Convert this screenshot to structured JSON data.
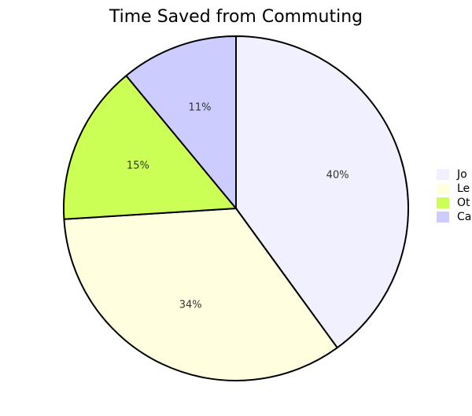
{
  "chart_data": {
    "type": "pie",
    "title": "Time Saved from Commuting",
    "categories": [
      "Jo",
      "Le",
      "Ot",
      "Ca"
    ],
    "values": [
      40,
      34,
      15,
      11
    ],
    "value_labels": [
      "40%",
      "34%",
      "15%",
      "11%"
    ],
    "colors": [
      "#f0f0ff",
      "#ffffe0",
      "#ccff55",
      "#ccccff"
    ]
  }
}
